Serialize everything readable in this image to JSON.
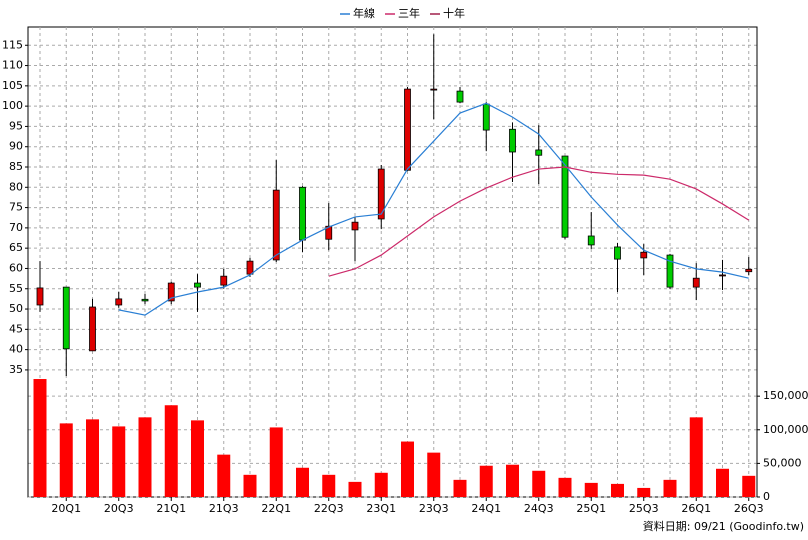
{
  "chart_data": [
    {
      "type": "candlestick",
      "categories": [
        null,
        "20Q1",
        null,
        "20Q3",
        null,
        "21Q1",
        null,
        "21Q3",
        null,
        "22Q1",
        null,
        "22Q3",
        null,
        "23Q1",
        null,
        "23Q3",
        null,
        "24Q1",
        null,
        "24Q3",
        null,
        "25Q1",
        null,
        "25Q3",
        null,
        "26Q1",
        null,
        "26Q3"
      ],
      "open": [
        51,
        55.4,
        39.7,
        51,
        52.4,
        52,
        56.4,
        55.9,
        58.6,
        62.1,
        80,
        67.2,
        69.5,
        72.2,
        84.2,
        104,
        103.7,
        100.5,
        94.3,
        89.2,
        87.7,
        68,
        65.3,
        62.6,
        63.3,
        55.4,
        58.2,
        59.2
      ],
      "high": [
        61.8,
        55.4,
        52.5,
        54.2,
        53.7,
        56.7,
        58.6,
        59.9,
        62.6,
        86.7,
        80.3,
        76.1,
        72.7,
        85.5,
        104.7,
        117.7,
        104.7,
        101,
        96,
        95.3,
        87.7,
        73.9,
        66.3,
        66,
        63.6,
        61.3,
        62.1,
        62.8
      ],
      "low": [
        49.3,
        33.5,
        39.7,
        50.3,
        51.2,
        51.2,
        49.3,
        55,
        57.9,
        61.6,
        64,
        64.5,
        61.8,
        69.7,
        84,
        96.8,
        100.7,
        88.9,
        81.3,
        80.8,
        67.2,
        64.8,
        54.2,
        58.4,
        54.9,
        52.2,
        54.7,
        58.4
      ],
      "close": [
        55.2,
        40.2,
        50.5,
        52.5,
        52,
        56.4,
        55.4,
        58.1,
        61.8,
        79.3,
        67,
        70.4,
        71.4,
        84.5,
        104.2,
        104.2,
        101,
        94.1,
        88.7,
        87.9,
        67.7,
        65.8,
        62.3,
        64,
        55.4,
        57.6,
        58.4,
        59.8
      ],
      "up_color": "#dd0000",
      "down_color": "#00cc00",
      "series": [
        {
          "name": "年線",
          "color": "#2a7fd4",
          "values": [
            null,
            null,
            null,
            49.8,
            48.5,
            52.7,
            54.2,
            55.4,
            58.4,
            63.3,
            67,
            70.2,
            72.7,
            73.4,
            84.5,
            91.4,
            98.3,
            100.7,
            97.3,
            93.1,
            85.5,
            77.6,
            70.7,
            64.5,
            61.8,
            59.9,
            59.1,
            57.6
          ]
        },
        {
          "name": "三年",
          "color": "#cc2a6a",
          "values": [
            null,
            null,
            null,
            null,
            null,
            null,
            null,
            null,
            null,
            null,
            null,
            58.1,
            59.9,
            63.3,
            68,
            72.7,
            76.6,
            79.8,
            82.5,
            84.5,
            85,
            83.7,
            83.2,
            83,
            82,
            79.6,
            75.9,
            71.9
          ]
        },
        {
          "name": "十年",
          "color": "#a0204a",
          "values": [
            null,
            null,
            null,
            null,
            null,
            null,
            null,
            null,
            null,
            null,
            null,
            null,
            null,
            null,
            null,
            null,
            null,
            null,
            null,
            null,
            null,
            null,
            null,
            null,
            null,
            null,
            null,
            null
          ]
        }
      ],
      "ylim": [
        33.5,
        119.5
      ],
      "yticks": [
        35,
        40,
        45,
        50,
        55,
        60,
        65,
        70,
        75,
        80,
        85,
        90,
        95,
        100,
        105,
        110,
        115
      ],
      "grid": true,
      "legend": "top",
      "note": "資料日期: 09/21 (Goodinfo.tw)"
    },
    {
      "type": "bar",
      "color": "#ff0000",
      "values": [
        175500,
        109500,
        115500,
        105000,
        118500,
        136500,
        114000,
        63000,
        33000,
        103500,
        43500,
        33000,
        22500,
        36000,
        82500,
        66000,
        25500,
        46500,
        48000,
        39000,
        28500,
        21000,
        19500,
        13500,
        25500,
        118500,
        42000,
        31500
      ],
      "ylim": [
        0,
        180000
      ],
      "yticks": [
        0,
        {
          "value": 50000,
          "label": "50,000"
        },
        {
          "value": 100000,
          "label": "100,000"
        },
        {
          "value": 150000,
          "label": "150,000"
        }
      ],
      "grid": true
    }
  ]
}
